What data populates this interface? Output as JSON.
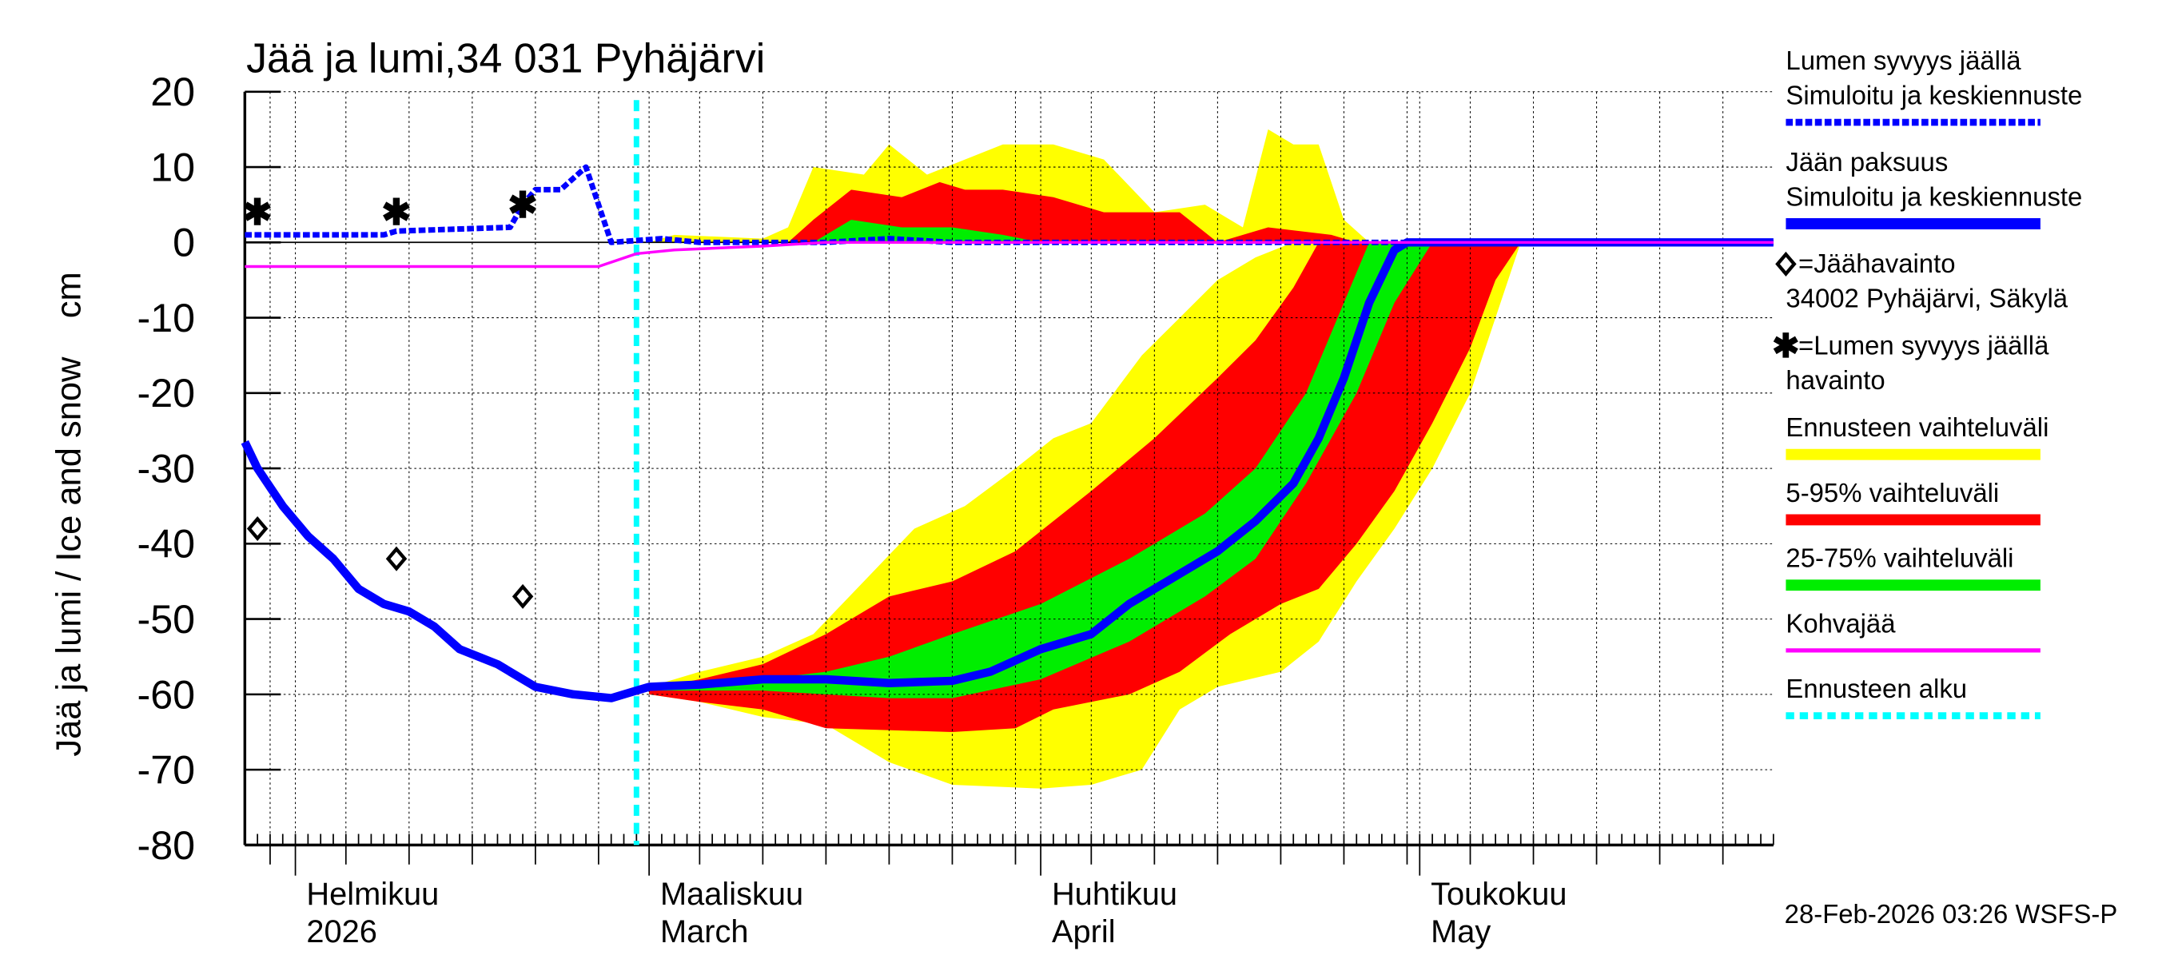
{
  "chart_data": {
    "type": "area",
    "title": "Jää ja lumi,34 031 Pyhäjärvi",
    "ylabel": "Jää ja lumi / Ice and snow    cm",
    "ylim": [
      -80,
      20
    ],
    "yticks": [
      20,
      10,
      0,
      -10,
      -20,
      -30,
      -40,
      -50,
      -60,
      -70,
      -80
    ],
    "xlim": [
      "2026-01-28",
      "2026-05-29"
    ],
    "grid": true,
    "legend_position": "right",
    "month_labels": [
      {
        "date": "2026-02-01",
        "fi": "Helmikuu",
        "en": "2026"
      },
      {
        "date": "2026-03-01",
        "fi": "Maaliskuu",
        "en": "March"
      },
      {
        "date": "2026-04-01",
        "fi": "Huhtikuu",
        "en": "April"
      },
      {
        "date": "2026-05-01",
        "fi": "Toukokuu",
        "en": "May"
      }
    ],
    "forecast_start": "2026-02-28",
    "colors": {
      "range": "#ffff00",
      "p5_95": "#ff0000",
      "p25_75": "#00ee00",
      "ice": "#0000ff",
      "snow": "#0000ff",
      "slush": "#ff00ff",
      "forecast_start": "#00ffff"
    },
    "bands": [
      {
        "name": "Ennusteen vaihteluväli",
        "color": "#ffff00",
        "ice_upper": [
          [
            "2026-03-01",
            -59
          ],
          [
            "2026-03-05",
            -57
          ],
          [
            "2026-03-10",
            -55
          ],
          [
            "2026-03-14",
            -52
          ],
          [
            "2026-03-18",
            -45
          ],
          [
            "2026-03-22",
            -38
          ],
          [
            "2026-03-26",
            -35
          ],
          [
            "2026-03-30",
            -30
          ],
          [
            "2026-04-02",
            -26
          ],
          [
            "2026-04-05",
            -24
          ],
          [
            "2026-04-09",
            -15
          ],
          [
            "2026-04-12",
            -10
          ],
          [
            "2026-04-15",
            -5
          ],
          [
            "2026-04-18",
            -2
          ],
          [
            "2026-04-21",
            0
          ],
          [
            "2026-05-09",
            0
          ]
        ],
        "ice_lower": [
          [
            "2026-03-01",
            -60
          ],
          [
            "2026-03-05",
            -61
          ],
          [
            "2026-03-10",
            -63
          ],
          [
            "2026-03-15",
            -64
          ],
          [
            "2026-03-20",
            -69
          ],
          [
            "2026-03-25",
            -72
          ],
          [
            "2026-04-01",
            -72.5
          ],
          [
            "2026-04-05",
            -72
          ],
          [
            "2026-04-09",
            -70
          ],
          [
            "2026-04-12",
            -62
          ],
          [
            "2026-04-15",
            -59
          ],
          [
            "2026-04-20",
            -57
          ],
          [
            "2026-04-23",
            -53
          ],
          [
            "2026-04-26",
            -45
          ],
          [
            "2026-04-29",
            -38
          ],
          [
            "2026-05-02",
            -30
          ],
          [
            "2026-05-05",
            -20
          ],
          [
            "2026-05-07",
            -10
          ],
          [
            "2026-05-09",
            0
          ]
        ],
        "snow_upper": [
          [
            "2026-03-01",
            0
          ],
          [
            "2026-03-03",
            1
          ],
          [
            "2026-03-10",
            0.5
          ],
          [
            "2026-03-12",
            2
          ],
          [
            "2026-03-14",
            10
          ],
          [
            "2026-03-18",
            9
          ],
          [
            "2026-03-20",
            13
          ],
          [
            "2026-03-23",
            9
          ],
          [
            "2026-03-26",
            11
          ],
          [
            "2026-03-29",
            13
          ],
          [
            "2026-04-02",
            13
          ],
          [
            "2026-04-06",
            11
          ],
          [
            "2026-04-10",
            4
          ],
          [
            "2026-04-14",
            5
          ],
          [
            "2026-04-17",
            2
          ],
          [
            "2026-04-19",
            15
          ],
          [
            "2026-04-21",
            13
          ],
          [
            "2026-04-23",
            13
          ],
          [
            "2026-04-25",
            3
          ],
          [
            "2026-04-27",
            0
          ]
        ]
      },
      {
        "name": "5-95% vaihteluväli",
        "color": "#ff0000",
        "ice_upper": [
          [
            "2026-03-01",
            -59.3
          ],
          [
            "2026-03-05",
            -58
          ],
          [
            "2026-03-10",
            -56
          ],
          [
            "2026-03-15",
            -52
          ],
          [
            "2026-03-20",
            -47
          ],
          [
            "2026-03-25",
            -45
          ],
          [
            "2026-03-30",
            -41
          ],
          [
            "2026-04-05",
            -33
          ],
          [
            "2026-04-10",
            -26
          ],
          [
            "2026-04-15",
            -18
          ],
          [
            "2026-04-18",
            -13
          ],
          [
            "2026-04-21",
            -6
          ],
          [
            "2026-04-23",
            0
          ],
          [
            "2026-05-09",
            0
          ]
        ],
        "ice_lower": [
          [
            "2026-03-01",
            -60
          ],
          [
            "2026-03-05",
            -61
          ],
          [
            "2026-03-10",
            -62
          ],
          [
            "2026-03-15",
            -64.5
          ],
          [
            "2026-03-25",
            -65
          ],
          [
            "2026-03-30",
            -64.5
          ],
          [
            "2026-04-02",
            -62
          ],
          [
            "2026-04-08",
            -60
          ],
          [
            "2026-04-12",
            -57
          ],
          [
            "2026-04-16",
            -52
          ],
          [
            "2026-04-20",
            -48
          ],
          [
            "2026-04-23",
            -46
          ],
          [
            "2026-04-26",
            -40
          ],
          [
            "2026-04-29",
            -33
          ],
          [
            "2026-05-02",
            -24
          ],
          [
            "2026-05-05",
            -14
          ],
          [
            "2026-05-07",
            -5
          ],
          [
            "2026-05-09",
            0
          ]
        ],
        "snow_upper": [
          [
            "2026-03-12",
            0
          ],
          [
            "2026-03-14",
            3
          ],
          [
            "2026-03-17",
            7
          ],
          [
            "2026-03-21",
            6
          ],
          [
            "2026-03-24",
            8
          ],
          [
            "2026-03-26",
            7
          ],
          [
            "2026-03-29",
            7
          ],
          [
            "2026-04-02",
            6
          ],
          [
            "2026-04-06",
            4
          ],
          [
            "2026-04-12",
            4
          ],
          [
            "2026-04-15",
            0
          ],
          [
            "2026-04-19",
            2
          ],
          [
            "2026-04-24",
            1
          ],
          [
            "2026-04-26",
            0
          ]
        ]
      },
      {
        "name": "25-75% vaihteluväli",
        "color": "#00ee00",
        "ice_upper": [
          [
            "2026-03-01",
            -59
          ],
          [
            "2026-03-10",
            -58
          ],
          [
            "2026-03-15",
            -57
          ],
          [
            "2026-03-20",
            -55
          ],
          [
            "2026-03-25",
            -52
          ],
          [
            "2026-04-01",
            -48
          ],
          [
            "2026-04-08",
            -42
          ],
          [
            "2026-04-14",
            -36
          ],
          [
            "2026-04-18",
            -30
          ],
          [
            "2026-04-22",
            -20
          ],
          [
            "2026-04-25",
            -8
          ],
          [
            "2026-04-27",
            0
          ],
          [
            "2026-05-02",
            0
          ]
        ],
        "ice_lower": [
          [
            "2026-03-01",
            -59.5
          ],
          [
            "2026-03-10",
            -59.5
          ],
          [
            "2026-03-20",
            -60.5
          ],
          [
            "2026-03-25",
            -60.5
          ],
          [
            "2026-04-01",
            -58
          ],
          [
            "2026-04-08",
            -53
          ],
          [
            "2026-04-14",
            -47
          ],
          [
            "2026-04-18",
            -42
          ],
          [
            "2026-04-22",
            -32
          ],
          [
            "2026-04-26",
            -20
          ],
          [
            "2026-04-29",
            -8
          ],
          [
            "2026-05-02",
            0
          ]
        ],
        "snow_upper": [
          [
            "2026-03-14",
            0
          ],
          [
            "2026-03-17",
            3
          ],
          [
            "2026-03-21",
            2
          ],
          [
            "2026-03-25",
            2
          ],
          [
            "2026-03-29",
            1
          ],
          [
            "2026-04-01",
            0
          ]
        ]
      }
    ],
    "series": [
      {
        "name": "Jään paksuus – Simuloitu ja keskiennuste",
        "color": "#0000ff",
        "style": "solid",
        "points": [
          [
            "2026-01-28",
            -26.5
          ],
          [
            "2026-01-29",
            -30
          ],
          [
            "2026-01-31",
            -35
          ],
          [
            "2026-02-02",
            -39
          ],
          [
            "2026-02-04",
            -42
          ],
          [
            "2026-02-06",
            -46
          ],
          [
            "2026-02-08",
            -48
          ],
          [
            "2026-02-10",
            -49
          ],
          [
            "2026-02-12",
            -51
          ],
          [
            "2026-02-14",
            -54
          ],
          [
            "2026-02-17",
            -56
          ],
          [
            "2026-02-20",
            -59
          ],
          [
            "2026-02-23",
            -60
          ],
          [
            "2026-02-26",
            -60.5
          ],
          [
            "2026-02-28",
            -59.5
          ],
          [
            "2026-03-01",
            -59
          ],
          [
            "2026-03-05",
            -58.7
          ],
          [
            "2026-03-10",
            -58
          ],
          [
            "2026-03-15",
            -58
          ],
          [
            "2026-03-20",
            -58.5
          ],
          [
            "2026-03-25",
            -58.2
          ],
          [
            "2026-03-28",
            -57
          ],
          [
            "2026-04-01",
            -54
          ],
          [
            "2026-04-05",
            -52
          ],
          [
            "2026-04-08",
            -48
          ],
          [
            "2026-04-12",
            -44
          ],
          [
            "2026-04-15",
            -41
          ],
          [
            "2026-04-18",
            -37
          ],
          [
            "2026-04-21",
            -32
          ],
          [
            "2026-04-23",
            -26
          ],
          [
            "2026-04-25",
            -18
          ],
          [
            "2026-04-27",
            -8
          ],
          [
            "2026-04-29",
            -1
          ],
          [
            "2026-04-30",
            0
          ],
          [
            "2026-05-29",
            0
          ]
        ]
      },
      {
        "name": "Lumen syvyys jäällä – Simuloitu ja keskiennuste",
        "color": "#0000ff",
        "style": "dashed",
        "points": [
          [
            "2026-01-28",
            1
          ],
          [
            "2026-02-08",
            1
          ],
          [
            "2026-02-09",
            1.5
          ],
          [
            "2026-02-18",
            2
          ],
          [
            "2026-02-19",
            5
          ],
          [
            "2026-02-20",
            7
          ],
          [
            "2026-02-22",
            7
          ],
          [
            "2026-02-24",
            10
          ],
          [
            "2026-02-25",
            5
          ],
          [
            "2026-02-26",
            0
          ],
          [
            "2026-03-02",
            0.5
          ],
          [
            "2026-03-05",
            0
          ],
          [
            "2026-03-15",
            0
          ],
          [
            "2026-03-20",
            0.5
          ],
          [
            "2026-03-25",
            0
          ],
          [
            "2026-05-29",
            0
          ]
        ]
      },
      {
        "name": "Kohvajää",
        "color": "#ff00ff",
        "style": "solid",
        "points": [
          [
            "2026-01-28",
            -3.2
          ],
          [
            "2026-02-25",
            -3.2
          ],
          [
            "2026-02-28",
            -1.5
          ],
          [
            "2026-03-03",
            -1
          ],
          [
            "2026-03-10",
            -0.5
          ],
          [
            "2026-03-15",
            0
          ],
          [
            "2026-05-29",
            0
          ]
        ]
      }
    ],
    "ice_observations": [
      [
        "2026-01-29",
        -38
      ],
      [
        "2026-02-09",
        -42
      ],
      [
        "2026-02-19",
        -47
      ]
    ],
    "snow_observations": [
      [
        "2026-01-29",
        4
      ],
      [
        "2026-02-09",
        4
      ],
      [
        "2026-02-19",
        5
      ]
    ]
  },
  "legend": [
    {
      "lines": [
        "Lumen syvyys jäällä",
        "Simuloitu ja keskiennuste"
      ],
      "swatch": "dashed",
      "color": "#0000ff"
    },
    {
      "lines": [
        "Jään paksuus",
        "Simuloitu ja keskiennuste"
      ],
      "swatch": "thick",
      "color": "#0000ff"
    },
    {
      "lines": [
        "=Jäähavainto",
        "34002 Pyhäjärvi, Säkylä"
      ],
      "swatch": "diamond",
      "color": "#000000"
    },
    {
      "lines": [
        "=Lumen syvyys jäällä",
        "havainto"
      ],
      "swatch": "star",
      "color": "#000000"
    },
    {
      "lines": [
        "Ennusteen vaihteluväli"
      ],
      "swatch": "band",
      "color": "#ffff00"
    },
    {
      "lines": [
        "5-95% vaihteluväli"
      ],
      "swatch": "band",
      "color": "#ff0000"
    },
    {
      "lines": [
        "25-75% vaihteluväli"
      ],
      "swatch": "band",
      "color": "#00ee00"
    },
    {
      "lines": [
        "Kohvajää"
      ],
      "swatch": "line",
      "color": "#ff00ff"
    },
    {
      "lines": [
        "Ennusteen alku"
      ],
      "swatch": "dotted",
      "color": "#00ffff"
    }
  ],
  "footer": "28-Feb-2026 03:26 WSFS-P"
}
